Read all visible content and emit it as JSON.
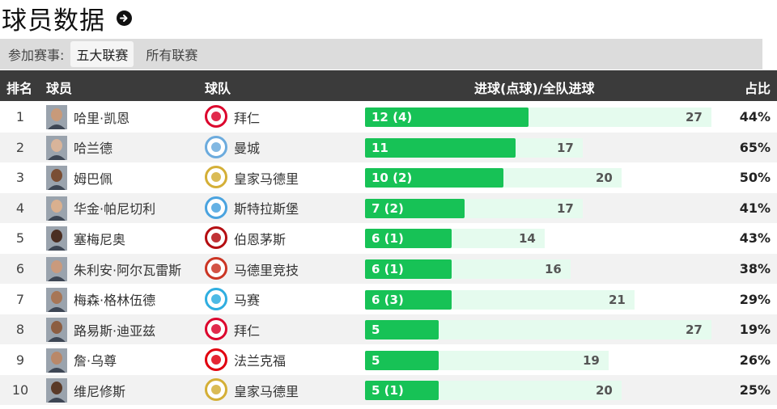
{
  "page": {
    "title": "球员数据"
  },
  "filters": {
    "label": "参加赛事:",
    "options": [
      {
        "label": "五大联赛",
        "active": true
      },
      {
        "label": "所有联赛",
        "active": false
      }
    ]
  },
  "table": {
    "headers": {
      "rank": "排名",
      "player": "球员",
      "team": "球队",
      "goals": "进球(点球)/全队进球",
      "ratio": "占比"
    },
    "scale_max": 27,
    "rows": [
      {
        "rank": "1",
        "player": "哈里·凯恩",
        "team": "拜仁",
        "goals": 12,
        "goals_label": "12 (4)",
        "team_goals": 27,
        "ratio": "44%",
        "team_icon": "bayern-crest-icon",
        "team_color": "#dc052d",
        "skin": "#c89a7a"
      },
      {
        "rank": "2",
        "player": "哈兰德",
        "team": "曼城",
        "goals": 11,
        "goals_label": "11",
        "team_goals": 17,
        "ratio": "65%",
        "team_icon": "man-city-crest-icon",
        "team_color": "#6cabdd",
        "skin": "#d8b49a"
      },
      {
        "rank": "3",
        "player": "姆巴佩",
        "team": "皇家马德里",
        "goals": 10,
        "goals_label": "10 (2)",
        "team_goals": 20,
        "ratio": "50%",
        "team_icon": "real-madrid-crest-icon",
        "team_color": "#d4af37",
        "skin": "#7a4e34"
      },
      {
        "rank": "4",
        "player": "华金·帕尼切利",
        "team": "斯特拉斯堡",
        "goals": 7,
        "goals_label": "7 (2)",
        "team_goals": 17,
        "ratio": "41%",
        "team_icon": "strasbourg-crest-icon",
        "team_color": "#4aa3df",
        "skin": "#d9b08f"
      },
      {
        "rank": "5",
        "player": "塞梅尼奥",
        "team": "伯恩茅斯",
        "goals": 6,
        "goals_label": "6 (1)",
        "team_goals": 14,
        "ratio": "43%",
        "team_icon": "bournemouth-crest-icon",
        "team_color": "#b50e12",
        "skin": "#4a2e22"
      },
      {
        "rank": "6",
        "player": "朱利安·阿尔瓦雷斯",
        "team": "马德里竞技",
        "goals": 6,
        "goals_label": "6 (1)",
        "team_goals": 16,
        "ratio": "38%",
        "team_icon": "atletico-crest-icon",
        "team_color": "#cb3524",
        "skin": "#c99a7d"
      },
      {
        "rank": "7",
        "player": "梅森·格林伍德",
        "team": "马赛",
        "goals": 6,
        "goals_label": "6 (3)",
        "team_goals": 21,
        "ratio": "29%",
        "team_icon": "marseille-crest-icon",
        "team_color": "#2faee0",
        "skin": "#a77656"
      },
      {
        "rank": "8",
        "player": "路易斯·迪亚兹",
        "team": "拜仁",
        "goals": 5,
        "goals_label": "5",
        "team_goals": 27,
        "ratio": "19%",
        "team_icon": "bayern-crest-icon",
        "team_color": "#dc052d",
        "skin": "#8c5e42"
      },
      {
        "rank": "9",
        "player": "詹·乌尊",
        "team": "法兰克福",
        "goals": 5,
        "goals_label": "5",
        "team_goals": 19,
        "ratio": "26%",
        "team_icon": "frankfurt-crest-icon",
        "team_color": "#e1000f",
        "skin": "#b98869"
      },
      {
        "rank": "10",
        "player": "维尼修斯",
        "team": "皇家马德里",
        "goals": 5,
        "goals_label": "5 (1)",
        "team_goals": 20,
        "ratio": "25%",
        "team_icon": "real-madrid-crest-icon",
        "team_color": "#d4af37",
        "skin": "#5a3a28"
      }
    ]
  }
}
